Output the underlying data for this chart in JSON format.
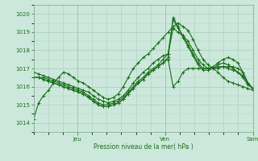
{
  "bg_color": "#cce8dc",
  "grid_color": "#aaccbb",
  "line_color": "#1a6e1a",
  "ylabel_text": "Pression niveau de la mer( hPa )",
  "ylim": [
    1013.5,
    1020.5
  ],
  "yticks": [
    1014,
    1015,
    1016,
    1017,
    1018,
    1019,
    1020
  ],
  "xlim": [
    0,
    180
  ],
  "x_tick_positions": [
    36,
    108,
    180
  ],
  "x_tick_labels": [
    "Jeu",
    "Ven",
    "Sam"
  ],
  "series": [
    [
      1014.2,
      1015.1,
      1015.5,
      1015.8,
      1016.2,
      1016.5,
      1016.8,
      1016.7,
      1016.5,
      1016.3,
      1016.2,
      1016.0,
      1015.8,
      1015.6,
      1015.4,
      1015.3,
      1015.4,
      1015.6,
      1016.0,
      1016.5,
      1017.0,
      1017.3,
      1017.6,
      1017.8,
      1018.1,
      1018.4,
      1018.7,
      1019.0,
      1019.3,
      1019.5,
      1019.3,
      1019.1,
      1018.6,
      1018.0,
      1017.5,
      1017.2,
      1017.0,
      1016.8,
      1016.5,
      1016.3,
      1016.2,
      1016.1,
      1016.0,
      1015.9,
      1015.8
    ],
    [
      1016.8,
      1016.7,
      1016.6,
      1016.5,
      1016.4,
      1016.3,
      1016.2,
      1016.1,
      1016.0,
      1015.9,
      1015.8,
      1015.7,
      1015.5,
      1015.3,
      1015.2,
      1015.1,
      1015.2,
      1015.3,
      1015.5,
      1015.8,
      1016.2,
      1016.5,
      1016.8,
      1017.0,
      1017.3,
      1017.5,
      1017.7,
      1017.8,
      1019.2,
      1019.0,
      1018.8,
      1018.5,
      1018.0,
      1017.5,
      1017.2,
      1017.0,
      1017.0,
      1017.2,
      1017.3,
      1017.2,
      1017.0,
      1016.8,
      1016.6,
      1016.2,
      1015.9
    ],
    [
      1016.5,
      1016.5,
      1016.5,
      1016.4,
      1016.3,
      1016.2,
      1016.1,
      1016.0,
      1015.9,
      1015.8,
      1015.7,
      1015.5,
      1015.3,
      1015.1,
      1015.0,
      1015.0,
      1015.1,
      1015.2,
      1015.4,
      1015.7,
      1016.0,
      1016.3,
      1016.5,
      1016.8,
      1017.0,
      1017.2,
      1017.5,
      1017.8,
      1019.7,
      1019.2,
      1018.8,
      1018.3,
      1017.8,
      1017.3,
      1017.0,
      1017.0,
      1017.1,
      1017.3,
      1017.5,
      1017.6,
      1017.5,
      1017.3,
      1016.8,
      1016.2,
      1015.9
    ],
    [
      1016.5,
      1016.5,
      1016.4,
      1016.3,
      1016.2,
      1016.1,
      1016.0,
      1015.9,
      1015.8,
      1015.7,
      1015.6,
      1015.4,
      1015.2,
      1015.0,
      1014.9,
      1014.9,
      1015.0,
      1015.1,
      1015.3,
      1015.6,
      1015.9,
      1016.2,
      1016.4,
      1016.7,
      1016.9,
      1017.1,
      1017.3,
      1017.6,
      1019.8,
      1019.3,
      1018.7,
      1018.2,
      1017.7,
      1017.2,
      1016.9,
      1016.9,
      1017.0,
      1017.1,
      1017.1,
      1017.0,
      1016.9,
      1016.8,
      1016.5,
      1016.1,
      1015.9
    ],
    [
      1016.5,
      1016.5,
      1016.4,
      1016.3,
      1016.2,
      1016.1,
      1016.0,
      1015.9,
      1015.8,
      1015.7,
      1015.6,
      1015.4,
      1015.2,
      1015.0,
      1014.9,
      1014.9,
      1015.0,
      1015.1,
      1015.3,
      1015.6,
      1015.9,
      1016.2,
      1016.4,
      1016.7,
      1016.9,
      1017.1,
      1017.3,
      1017.5,
      1016.0,
      1016.3,
      1016.8,
      1017.0,
      1017.0,
      1017.0,
      1017.0,
      1017.0,
      1017.0,
      1017.0,
      1017.1,
      1017.1,
      1017.1,
      1017.0,
      1016.8,
      1016.2,
      1015.9
    ]
  ],
  "figsize": [
    3.2,
    2.0
  ],
  "dpi": 100
}
